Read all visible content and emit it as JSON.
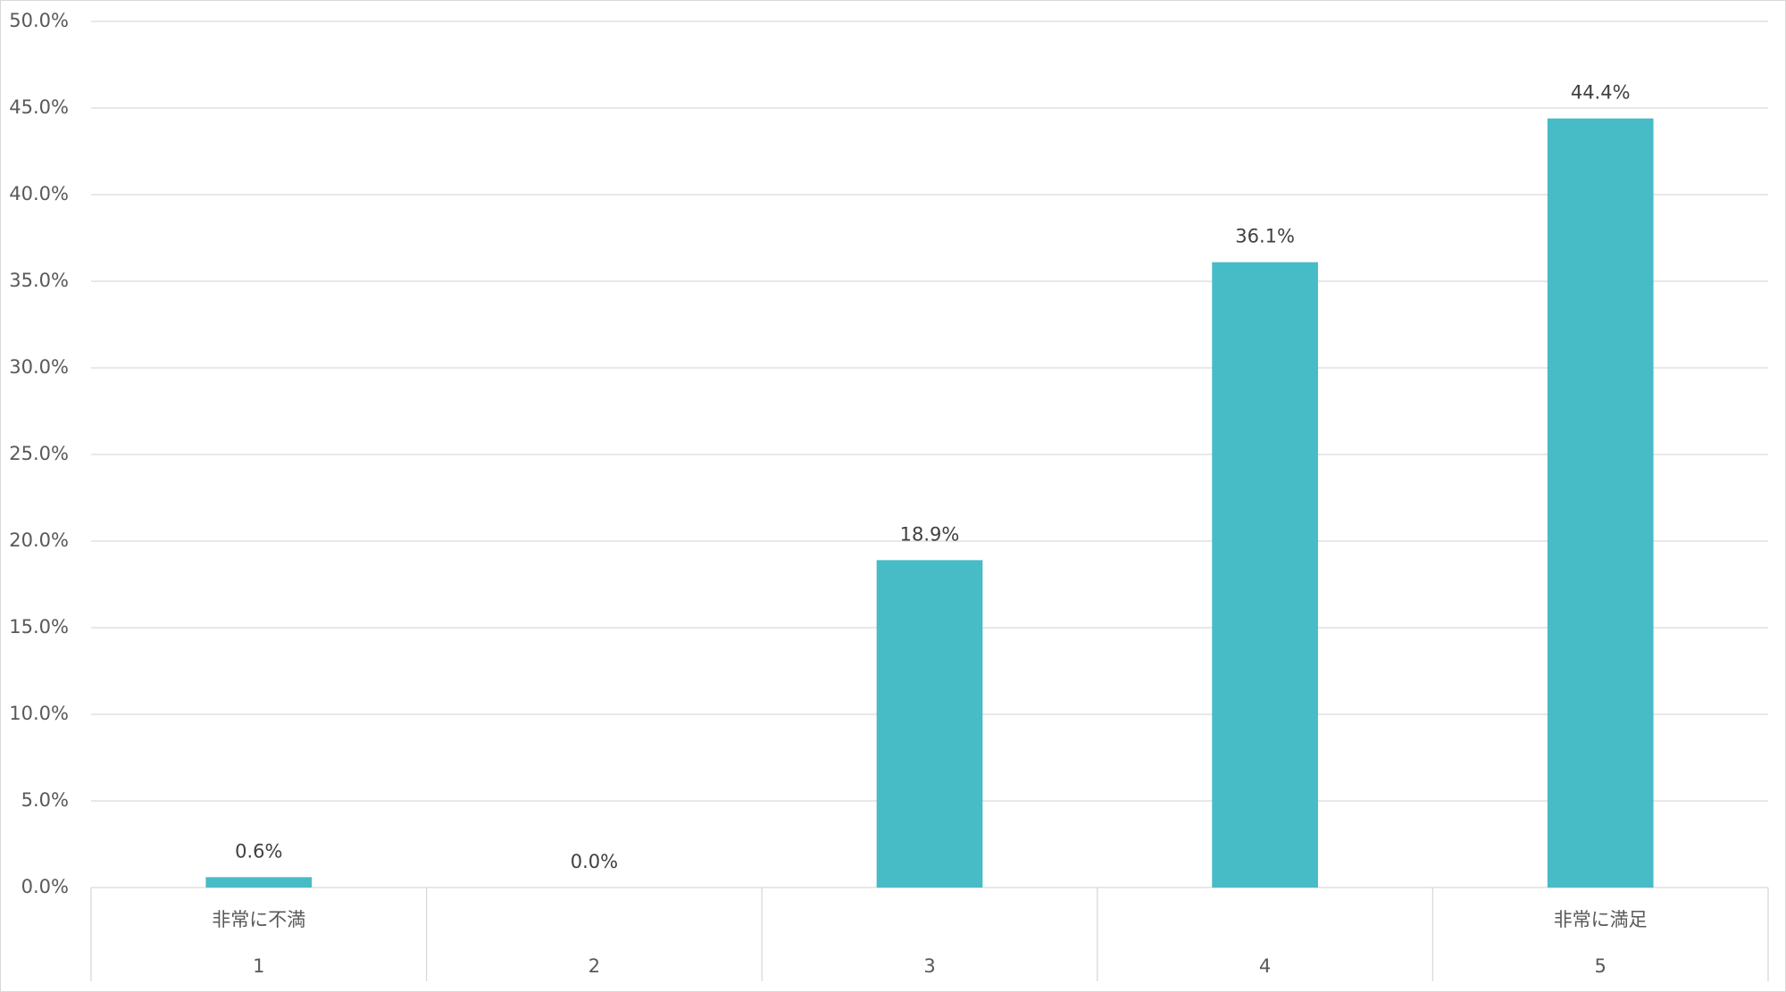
{
  "chart_data": {
    "type": "bar",
    "categories": [
      "1",
      "2",
      "3",
      "4",
      "5"
    ],
    "category_group_labels": [
      "非常に不満",
      null,
      null,
      null,
      "非常に満足"
    ],
    "values": [
      0.6,
      0.0,
      18.9,
      36.1,
      44.4
    ],
    "value_labels": [
      "0.6%",
      "0.0%",
      "18.9%",
      "36.1%",
      "44.4%"
    ],
    "color": "#47bbc6",
    "ylim": [
      0,
      50
    ],
    "yticks": [
      {
        "value": 0,
        "label": "0.0%"
      },
      {
        "value": 5,
        "label": "5.0%"
      },
      {
        "value": 10,
        "label": "10.0%"
      },
      {
        "value": 15,
        "label": "15.0%"
      },
      {
        "value": 20,
        "label": "20.0%"
      },
      {
        "value": 25,
        "label": "25.0%"
      },
      {
        "value": 30,
        "label": "30.0%"
      },
      {
        "value": 35,
        "label": "35.0%"
      },
      {
        "value": 40,
        "label": "40.0%"
      },
      {
        "value": 45,
        "label": "45.0%"
      },
      {
        "value": 50,
        "label": "50.0%"
      }
    ],
    "grid": true
  }
}
